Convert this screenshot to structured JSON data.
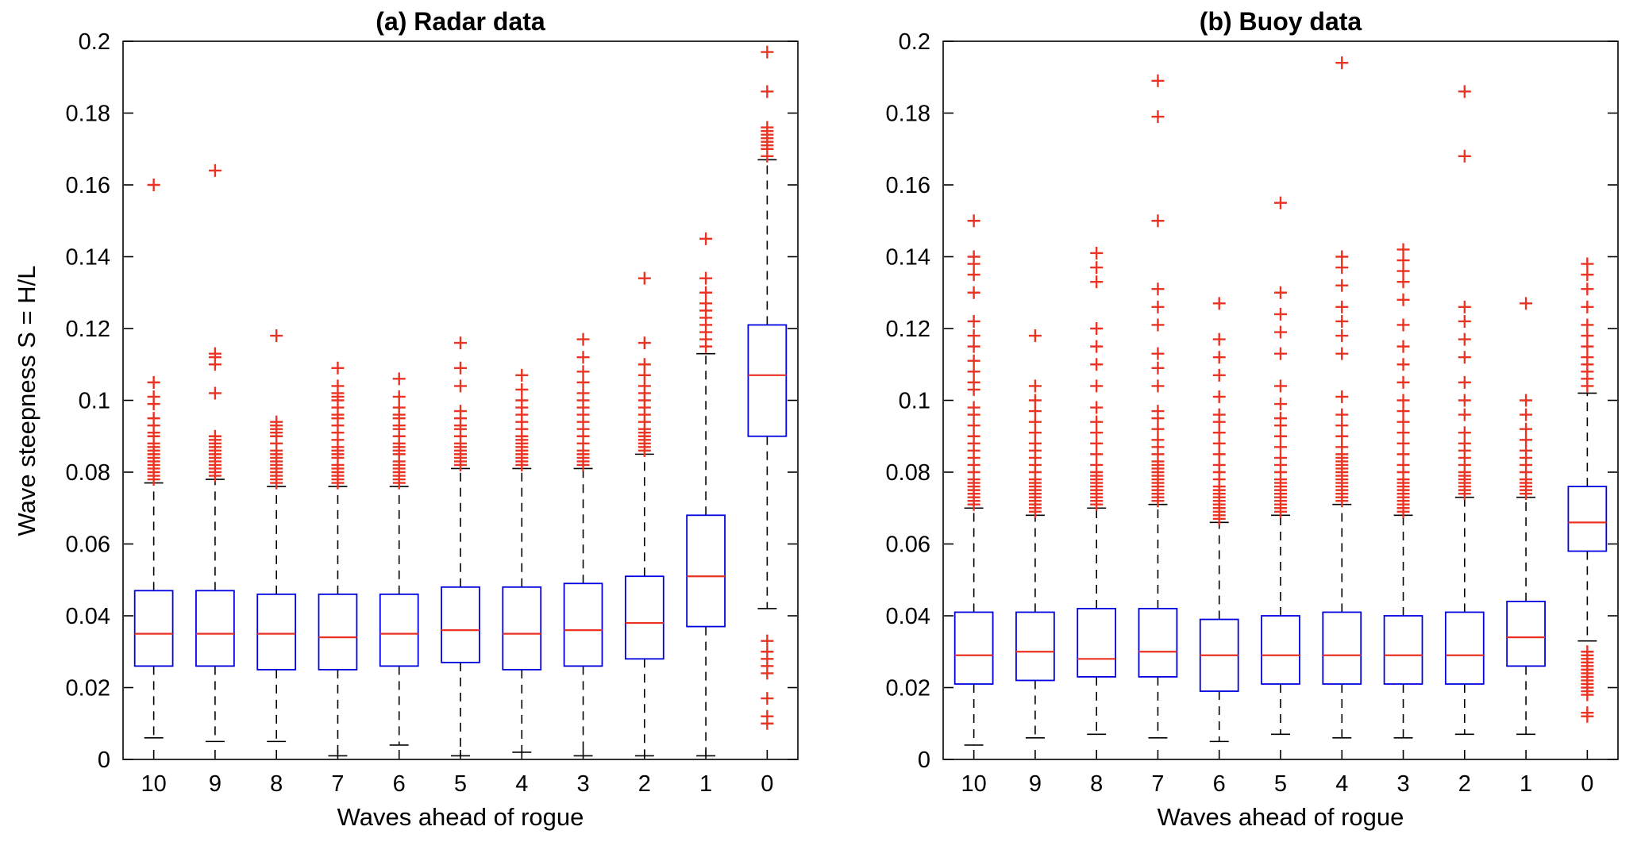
{
  "style": {
    "box_color": "#0000e0",
    "median_color": "#ea3323",
    "outlier_color": "#ea3323",
    "whisker_color": "#000000",
    "axis_color": "#000000",
    "background": "#ffffff"
  },
  "chart_data": [
    {
      "type": "boxplot",
      "title": "(a) Radar data",
      "xlabel": "Waves ahead of rogue",
      "ylabel": "Wave steepness S = H/L",
      "categories": [
        "10",
        "9",
        "8",
        "7",
        "6",
        "5",
        "4",
        "3",
        "2",
        "1",
        "0"
      ],
      "ylim": [
        0,
        0.2
      ],
      "yticks": [
        0,
        0.02,
        0.04,
        0.06,
        0.08,
        0.1,
        0.12,
        0.14,
        0.16,
        0.18,
        0.2
      ],
      "ytick_labels": [
        "0",
        "0.02",
        "0.04",
        "0.06",
        "0.08",
        "0.1",
        "0.12",
        "0.14",
        "0.16",
        "0.18",
        "0.2"
      ],
      "grid": false,
      "legend": null,
      "boxes": [
        {
          "whisker_low": 0.006,
          "q1": 0.026,
          "median": 0.035,
          "q3": 0.047,
          "whisker_high": 0.077,
          "outliers": [
            0.078,
            0.079,
            0.08,
            0.081,
            0.082,
            0.083,
            0.084,
            0.085,
            0.086,
            0.087,
            0.088,
            0.09,
            0.091,
            0.093,
            0.095,
            0.099,
            0.101,
            0.105,
            0.16
          ]
        },
        {
          "whisker_low": 0.005,
          "q1": 0.026,
          "median": 0.035,
          "q3": 0.047,
          "whisker_high": 0.078,
          "outliers": [
            0.079,
            0.08,
            0.081,
            0.082,
            0.083,
            0.084,
            0.085,
            0.086,
            0.087,
            0.088,
            0.089,
            0.09,
            0.102,
            0.11,
            0.112,
            0.113,
            0.164
          ]
        },
        {
          "whisker_low": 0.005,
          "q1": 0.025,
          "median": 0.035,
          "q3": 0.046,
          "whisker_high": 0.076,
          "outliers": [
            0.077,
            0.078,
            0.079,
            0.08,
            0.081,
            0.082,
            0.083,
            0.084,
            0.085,
            0.086,
            0.088,
            0.09,
            0.091,
            0.092,
            0.093,
            0.094,
            0.118
          ]
        },
        {
          "whisker_low": 0.001,
          "q1": 0.025,
          "median": 0.034,
          "q3": 0.046,
          "whisker_high": 0.076,
          "outliers": [
            0.077,
            0.078,
            0.079,
            0.08,
            0.081,
            0.082,
            0.084,
            0.085,
            0.086,
            0.087,
            0.089,
            0.091,
            0.093,
            0.095,
            0.096,
            0.098,
            0.1,
            0.101,
            0.102,
            0.104,
            0.109
          ]
        },
        {
          "whisker_low": 0.004,
          "q1": 0.026,
          "median": 0.035,
          "q3": 0.046,
          "whisker_high": 0.076,
          "outliers": [
            0.077,
            0.078,
            0.079,
            0.08,
            0.081,
            0.082,
            0.083,
            0.085,
            0.086,
            0.087,
            0.088,
            0.09,
            0.092,
            0.093,
            0.095,
            0.096,
            0.098,
            0.101,
            0.106
          ]
        },
        {
          "whisker_low": 0.001,
          "q1": 0.027,
          "median": 0.036,
          "q3": 0.048,
          "whisker_high": 0.081,
          "outliers": [
            0.082,
            0.083,
            0.084,
            0.085,
            0.086,
            0.087,
            0.088,
            0.09,
            0.092,
            0.093,
            0.095,
            0.097,
            0.104,
            0.109,
            0.116
          ]
        },
        {
          "whisker_low": 0.002,
          "q1": 0.025,
          "median": 0.035,
          "q3": 0.048,
          "whisker_high": 0.081,
          "outliers": [
            0.082,
            0.083,
            0.084,
            0.085,
            0.086,
            0.087,
            0.088,
            0.089,
            0.09,
            0.092,
            0.094,
            0.096,
            0.098,
            0.1,
            0.103,
            0.107
          ]
        },
        {
          "whisker_low": 0.001,
          "q1": 0.026,
          "median": 0.036,
          "q3": 0.049,
          "whisker_high": 0.081,
          "outliers": [
            0.082,
            0.083,
            0.084,
            0.085,
            0.086,
            0.088,
            0.09,
            0.092,
            0.094,
            0.096,
            0.098,
            0.1,
            0.102,
            0.105,
            0.108,
            0.112,
            0.117
          ]
        },
        {
          "whisker_low": 0.001,
          "q1": 0.028,
          "median": 0.038,
          "q3": 0.051,
          "whisker_high": 0.085,
          "outliers": [
            0.086,
            0.087,
            0.088,
            0.089,
            0.09,
            0.091,
            0.092,
            0.094,
            0.096,
            0.098,
            0.1,
            0.102,
            0.104,
            0.107,
            0.11,
            0.116,
            0.134
          ]
        },
        {
          "whisker_low": 0.001,
          "q1": 0.037,
          "median": 0.051,
          "q3": 0.068,
          "whisker_high": 0.113,
          "outliers": [
            0.115,
            0.117,
            0.119,
            0.121,
            0.123,
            0.125,
            0.127,
            0.13,
            0.134,
            0.145
          ]
        },
        {
          "whisker_low": 0.042,
          "q1": 0.09,
          "median": 0.107,
          "q3": 0.121,
          "whisker_high": 0.167,
          "outliers": [
            0.168,
            0.17,
            0.171,
            0.172,
            0.173,
            0.174,
            0.175,
            0.176,
            0.186,
            0.197,
            0.033,
            0.03,
            0.028,
            0.026,
            0.024,
            0.017,
            0.012,
            0.01
          ]
        }
      ]
    },
    {
      "type": "boxplot",
      "title": "(b) Buoy data",
      "xlabel": "Waves ahead of rogue",
      "ylabel": "",
      "categories": [
        "10",
        "9",
        "8",
        "7",
        "6",
        "5",
        "4",
        "3",
        "2",
        "1",
        "0"
      ],
      "ylim": [
        0,
        0.2
      ],
      "yticks": [
        0,
        0.02,
        0.04,
        0.06,
        0.08,
        0.1,
        0.12,
        0.14,
        0.16,
        0.18,
        0.2
      ],
      "ytick_labels": [
        "0",
        "0.02",
        "0.04",
        "0.06",
        "0.08",
        "0.1",
        "0.12",
        "0.14",
        "0.16",
        "0.18",
        "0.2"
      ],
      "grid": false,
      "legend": null,
      "boxes": [
        {
          "whisker_low": 0.004,
          "q1": 0.021,
          "median": 0.029,
          "q3": 0.041,
          "whisker_high": 0.07,
          "outliers": [
            0.071,
            0.072,
            0.073,
            0.074,
            0.075,
            0.076,
            0.077,
            0.078,
            0.08,
            0.082,
            0.084,
            0.086,
            0.088,
            0.09,
            0.093,
            0.096,
            0.098,
            0.103,
            0.105,
            0.108,
            0.111,
            0.115,
            0.118,
            0.122,
            0.13,
            0.135,
            0.138,
            0.14,
            0.15
          ]
        },
        {
          "whisker_low": 0.006,
          "q1": 0.022,
          "median": 0.03,
          "q3": 0.041,
          "whisker_high": 0.068,
          "outliers": [
            0.069,
            0.07,
            0.071,
            0.072,
            0.073,
            0.074,
            0.075,
            0.076,
            0.077,
            0.078,
            0.08,
            0.082,
            0.084,
            0.086,
            0.088,
            0.091,
            0.094,
            0.097,
            0.1,
            0.104,
            0.118
          ]
        },
        {
          "whisker_low": 0.007,
          "q1": 0.023,
          "median": 0.028,
          "q3": 0.042,
          "whisker_high": 0.07,
          "outliers": [
            0.071,
            0.072,
            0.073,
            0.074,
            0.075,
            0.076,
            0.077,
            0.078,
            0.079,
            0.08,
            0.082,
            0.085,
            0.088,
            0.091,
            0.094,
            0.098,
            0.104,
            0.11,
            0.115,
            0.12,
            0.133,
            0.137,
            0.141
          ]
        },
        {
          "whisker_low": 0.006,
          "q1": 0.023,
          "median": 0.03,
          "q3": 0.042,
          "whisker_high": 0.071,
          "outliers": [
            0.072,
            0.073,
            0.074,
            0.075,
            0.076,
            0.077,
            0.078,
            0.079,
            0.08,
            0.081,
            0.082,
            0.083,
            0.085,
            0.087,
            0.089,
            0.092,
            0.095,
            0.097,
            0.104,
            0.109,
            0.113,
            0.121,
            0.126,
            0.131,
            0.15,
            0.179,
            0.189
          ]
        },
        {
          "whisker_low": 0.005,
          "q1": 0.019,
          "median": 0.029,
          "q3": 0.039,
          "whisker_high": 0.066,
          "outliers": [
            0.067,
            0.068,
            0.069,
            0.07,
            0.071,
            0.072,
            0.073,
            0.074,
            0.075,
            0.076,
            0.078,
            0.08,
            0.082,
            0.085,
            0.088,
            0.091,
            0.094,
            0.096,
            0.101,
            0.107,
            0.112,
            0.117,
            0.127
          ]
        },
        {
          "whisker_low": 0.007,
          "q1": 0.021,
          "median": 0.029,
          "q3": 0.04,
          "whisker_high": 0.068,
          "outliers": [
            0.069,
            0.07,
            0.071,
            0.072,
            0.073,
            0.074,
            0.075,
            0.076,
            0.077,
            0.078,
            0.08,
            0.082,
            0.084,
            0.087,
            0.09,
            0.093,
            0.095,
            0.099,
            0.104,
            0.113,
            0.119,
            0.124,
            0.13,
            0.155
          ]
        },
        {
          "whisker_low": 0.006,
          "q1": 0.021,
          "median": 0.029,
          "q3": 0.041,
          "whisker_high": 0.071,
          "outliers": [
            0.072,
            0.073,
            0.074,
            0.075,
            0.076,
            0.077,
            0.078,
            0.079,
            0.08,
            0.081,
            0.082,
            0.083,
            0.084,
            0.085,
            0.087,
            0.09,
            0.093,
            0.096,
            0.101,
            0.113,
            0.118,
            0.122,
            0.126,
            0.132,
            0.137,
            0.14,
            0.194
          ]
        },
        {
          "whisker_low": 0.006,
          "q1": 0.021,
          "median": 0.029,
          "q3": 0.04,
          "whisker_high": 0.068,
          "outliers": [
            0.069,
            0.07,
            0.071,
            0.072,
            0.073,
            0.074,
            0.075,
            0.076,
            0.077,
            0.078,
            0.08,
            0.082,
            0.085,
            0.088,
            0.091,
            0.094,
            0.097,
            0.1,
            0.105,
            0.11,
            0.115,
            0.121,
            0.128,
            0.133,
            0.136,
            0.139,
            0.142
          ]
        },
        {
          "whisker_low": 0.007,
          "q1": 0.021,
          "median": 0.029,
          "q3": 0.041,
          "whisker_high": 0.073,
          "outliers": [
            0.074,
            0.075,
            0.076,
            0.077,
            0.078,
            0.079,
            0.08,
            0.082,
            0.084,
            0.086,
            0.088,
            0.091,
            0.096,
            0.1,
            0.105,
            0.112,
            0.117,
            0.122,
            0.126,
            0.168,
            0.186
          ]
        },
        {
          "whisker_low": 0.007,
          "q1": 0.026,
          "median": 0.034,
          "q3": 0.044,
          "whisker_high": 0.073,
          "outliers": [
            0.074,
            0.075,
            0.076,
            0.077,
            0.078,
            0.08,
            0.082,
            0.084,
            0.086,
            0.089,
            0.092,
            0.096,
            0.1,
            0.127
          ]
        },
        {
          "whisker_low": 0.033,
          "q1": 0.058,
          "median": 0.066,
          "q3": 0.076,
          "whisker_high": 0.102,
          "outliers": [
            0.104,
            0.106,
            0.108,
            0.11,
            0.112,
            0.115,
            0.118,
            0.121,
            0.126,
            0.131,
            0.135,
            0.138,
            0.03,
            0.029,
            0.028,
            0.027,
            0.026,
            0.025,
            0.024,
            0.023,
            0.022,
            0.021,
            0.02,
            0.019,
            0.018,
            0.013,
            0.012
          ]
        }
      ]
    }
  ]
}
